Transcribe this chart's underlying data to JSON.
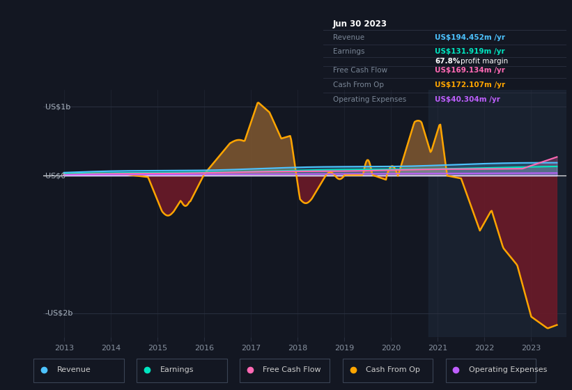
{
  "background_color": "#131722",
  "grid_color": "#2a3040",
  "zero_line_color": "#ffffff",
  "title_date": "Jun 30 2023",
  "table_rows": [
    {
      "label": "Revenue",
      "value": "US$194.452m /yr",
      "color": "#4dc3ff",
      "label_color": "#8892a0"
    },
    {
      "label": "Earnings",
      "value": "US$131.919m /yr",
      "color": "#00e5c0",
      "label_color": "#8892a0"
    },
    {
      "label": "",
      "value": "67.8% profit margin",
      "color": "#cccccc",
      "label_color": "#8892a0"
    },
    {
      "label": "Free Cash Flow",
      "value": "US$169.134m /yr",
      "color": "#ff69b4",
      "label_color": "#8892a0"
    },
    {
      "label": "Cash From Op",
      "value": "US$172.107m /yr",
      "color": "#ffa500",
      "label_color": "#8892a0"
    },
    {
      "label": "Operating Expenses",
      "value": "US$40.304m /yr",
      "color": "#bf5fff",
      "label_color": "#8892a0"
    }
  ],
  "legend_items": [
    {
      "label": "Revenue",
      "color": "#4dc3ff"
    },
    {
      "label": "Earnings",
      "color": "#00e5c0"
    },
    {
      "label": "Free Cash Flow",
      "color": "#ff69b4"
    },
    {
      "label": "Cash From Op",
      "color": "#ffa500"
    },
    {
      "label": "Operating Expenses",
      "color": "#bf5fff"
    }
  ],
  "ylim": [
    -2350000000.0,
    1250000000.0
  ],
  "ytick_vals": [
    -2000000000.0,
    0,
    1000000000.0
  ],
  "ytick_labels": [
    "-US$2b",
    "US$0",
    "US$1b"
  ],
  "xlim": [
    2012.55,
    2023.75
  ],
  "xtick_vals": [
    2013,
    2014,
    2015,
    2016,
    2017,
    2018,
    2019,
    2020,
    2021,
    2022,
    2023
  ],
  "revenue_color": "#4dc3ff",
  "earnings_color": "#00e5c0",
  "fcf_color": "#ff69b4",
  "cashop_color": "#ffa500",
  "opex_color": "#bf5fff",
  "fill_pos_color": "#7a5530",
  "fill_neg_color": "#6b1a28",
  "shade_region_color": "#1e2a3a",
  "shade_x_start": 2020.8,
  "shade_x_end": 2023.75
}
